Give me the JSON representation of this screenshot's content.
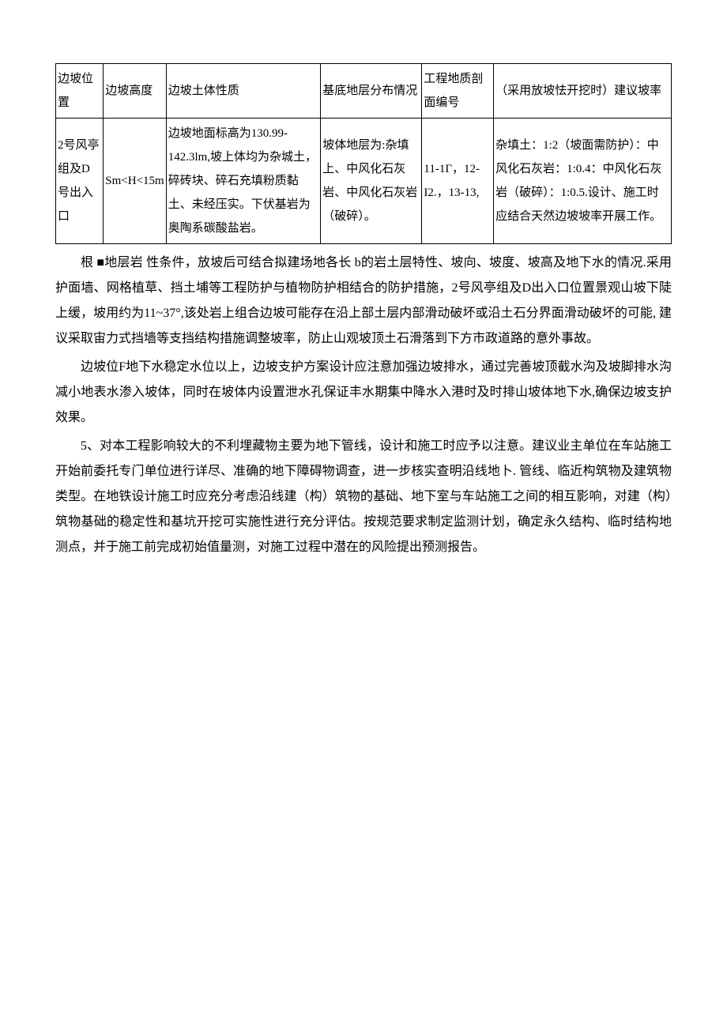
{
  "table": {
    "headers": {
      "col1": "边坡位置",
      "col2": "边坡高度",
      "col3": "边坡土体性质",
      "col4": "基底地层分布情况",
      "col5": "工程地质剖面编号",
      "col6": "（采用放坡怯开挖时）建议坡率"
    },
    "row": {
      "col1": "2号风亭组及D号出入口",
      "col2": "Sm<H<15m",
      "col3": "边坡地面标高为130.99-142.3lm,坡上体均为杂城土，碎砖块、碎石充填粉质黏土、未经压实。下伏基岩为奥陶系碳酸盐岩。",
      "col4": "坡体地层为:杂填上、中风化石灰岩、中风化石灰岩（破碎）。",
      "col5": "11-1Γ，12-I2.，13-13,",
      "col6": "杂填土：1:2（坡面需防护）：中风化石灰岩：1:0.4：中风化石灰岩（破碎）：1:0.5.设计、施工时应结合天然边坡坡率开展工作。"
    }
  },
  "paragraphs": {
    "p1_prefix": "根 ■地层岩",
    "p1_mid": "性条件，放坡后可结合拟建场地各⻓",
    "p1_suffix": "b的岩土层特性、坡向、坡度、坡高及地下水的情况.采用护面墙、网格植草、挡土埔等工程防护与植物防护相结合的防护措施，2号风亭组及D出入口位置景观山坡下陡上缓，坡用约为11~37°,该处岩上组合边坡可能存在沿上部土层内部滑动破坏或沿土石分界面滑动破坏的可能,  建议采取宙力式挡墙等支挡结构措施调整坡率，防止山观坡顶土石滑落到下方市政道路的意外事故。",
    "p2": "边坡位F地下水稳定水位以上，边坡支护方案设计应注意加强边坡排水，通过完善坡顶截水沟及坡脚排水沟减小地表水渗入坡体，同时在坡体内设置泄水孔保证丰水期集中降水入港时及时排山坡体地下水,确保边坡支护效果。",
    "p3": "5、对本工程影响较大的不利埋藏物主要为地下管线，设计和施工时应予以注意。建议业主单位在车站施工开始前委托专门单位进行详尽、准确的地下障碍物调查，进一步核实查明沿线地卜. 管线、临近构筑物及建筑物类型。在地铁设计施工时应充分考虑沿线建（构）筑物的基础、地下室与车站施工之间的相互影响，对建（构）筑物基础的稳定性和基坑开挖可实施性进行充分评估。按规范要求制定监测计划，确定永久结构、临时结构地测点，并于施工前完成初始值量测，对施工过程中潜在的风险提出预测报告。"
  }
}
